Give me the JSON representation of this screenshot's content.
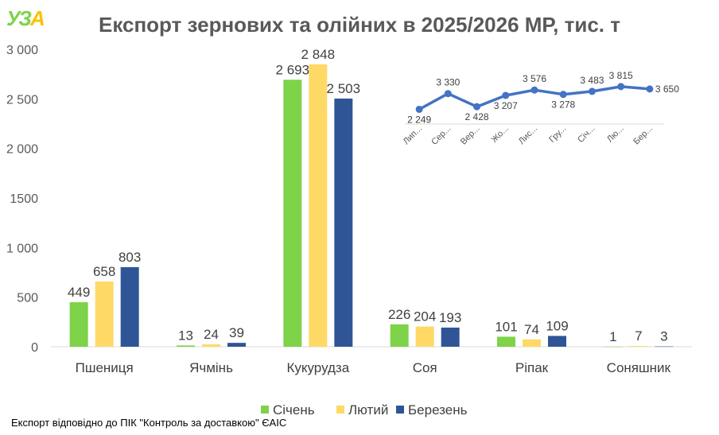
{
  "header": {
    "logo": "УЗА",
    "title": "Експорт зернових та олійних в 2025/2026 МР, тис. т"
  },
  "footnote": "Експорт відповідно до ПІК \"Контроль за доставкою\" ЄАІС",
  "colors": {
    "jan": "#7ED348",
    "feb": "#FFD966",
    "mar": "#2F5597",
    "line": "#4472C4",
    "logo_green": "#7ED348",
    "logo_yellow": "#F5C400"
  },
  "chart_data": [
    {
      "type": "bar",
      "title": "Експорт зернових та олійних в 2025/2026 МР, тис. т",
      "categories": [
        "Пшениця",
        "Ячмінь",
        "Кукурудза",
        "Соя",
        "Ріпак",
        "Соняшник"
      ],
      "series": [
        {
          "name": "Січень",
          "values": [
            449,
            13,
            2693,
            226,
            101,
            1
          ]
        },
        {
          "name": "Лютий",
          "values": [
            658,
            24,
            2848,
            204,
            74,
            7
          ]
        },
        {
          "name": "Березень",
          "values": [
            803,
            39,
            2503,
            193,
            109,
            3
          ]
        }
      ],
      "ylim": [
        0,
        3000
      ],
      "yticks": [
        "0",
        "500",
        "1 000",
        "1500",
        "2 000",
        "2 500",
        "3 000"
      ],
      "legend": "bottom",
      "grid": false
    },
    {
      "type": "line",
      "categories": [
        "Лип...",
        "Сер...",
        "Вер...",
        "Жо...",
        "Лис...",
        "Гру...",
        "Січ...",
        "Лю...",
        "Бер..."
      ],
      "values": [
        2249,
        3330,
        2428,
        3207,
        3576,
        3278,
        3483,
        3815,
        3650
      ],
      "labels": [
        "2 249",
        "3 330",
        "2 428",
        "3 207",
        "3 576",
        "3 278",
        "3 483",
        "3 815",
        "3 650"
      ]
    }
  ]
}
